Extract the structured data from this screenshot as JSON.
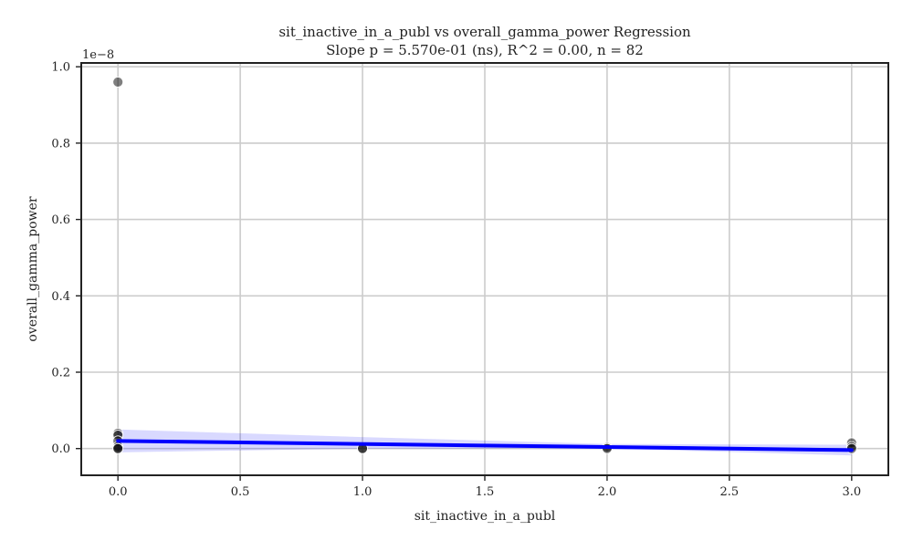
{
  "chart_data": {
    "type": "scatter",
    "title": "sit_inactive_in_a_publ vs overall_gamma_power Regression",
    "subtitle": "Slope p = 5.570e-01 (ns), R^2 = 0.00, n = 82",
    "xlabel": "sit_inactive_in_a_publ",
    "ylabel": "overall_gamma_power",
    "y_offset_label": "1e−8",
    "xlim": [
      -0.15,
      3.15
    ],
    "ylim": [
      -0.07,
      1.01
    ],
    "x_ticks": [
      0.0,
      0.5,
      1.0,
      1.5,
      2.0,
      2.5,
      3.0
    ],
    "x_tick_labels": [
      "0.0",
      "0.5",
      "1.0",
      "1.5",
      "2.0",
      "2.5",
      "3.0"
    ],
    "y_ticks": [
      0.0,
      0.2,
      0.4,
      0.6,
      0.8,
      1.0
    ],
    "y_tick_labels": [
      "0.0",
      "0.2",
      "0.4",
      "0.6",
      "0.8",
      "1.0"
    ],
    "grid": true,
    "points": [
      {
        "x": 0.0,
        "y": 0.96
      },
      {
        "x": 0.0,
        "y": 0.04
      },
      {
        "x": 0.0,
        "y": 0.035
      },
      {
        "x": 0.0,
        "y": 0.02
      },
      {
        "x": 0.0,
        "y": 0.005
      },
      {
        "x": 0.0,
        "y": 0.0
      },
      {
        "x": 0.0,
        "y": 0.0
      },
      {
        "x": 1.0,
        "y": 0.0
      },
      {
        "x": 1.0,
        "y": 0.0
      },
      {
        "x": 2.0,
        "y": 0.003
      },
      {
        "x": 2.0,
        "y": 0.0
      },
      {
        "x": 3.0,
        "y": 0.015
      },
      {
        "x": 3.0,
        "y": 0.005
      },
      {
        "x": 3.0,
        "y": 0.0
      }
    ],
    "regression_line": {
      "x": [
        0.0,
        3.0
      ],
      "y": [
        0.02,
        -0.004
      ],
      "color": "#0000ff"
    },
    "confidence_band": {
      "x": [
        0.0,
        1.0,
        2.0,
        3.0
      ],
      "upper": [
        0.05,
        0.03,
        0.012,
        0.01
      ],
      "lower": [
        -0.01,
        0.0,
        0.0,
        -0.018
      ],
      "color": "#0000ff"
    },
    "point_color": "#000000"
  }
}
